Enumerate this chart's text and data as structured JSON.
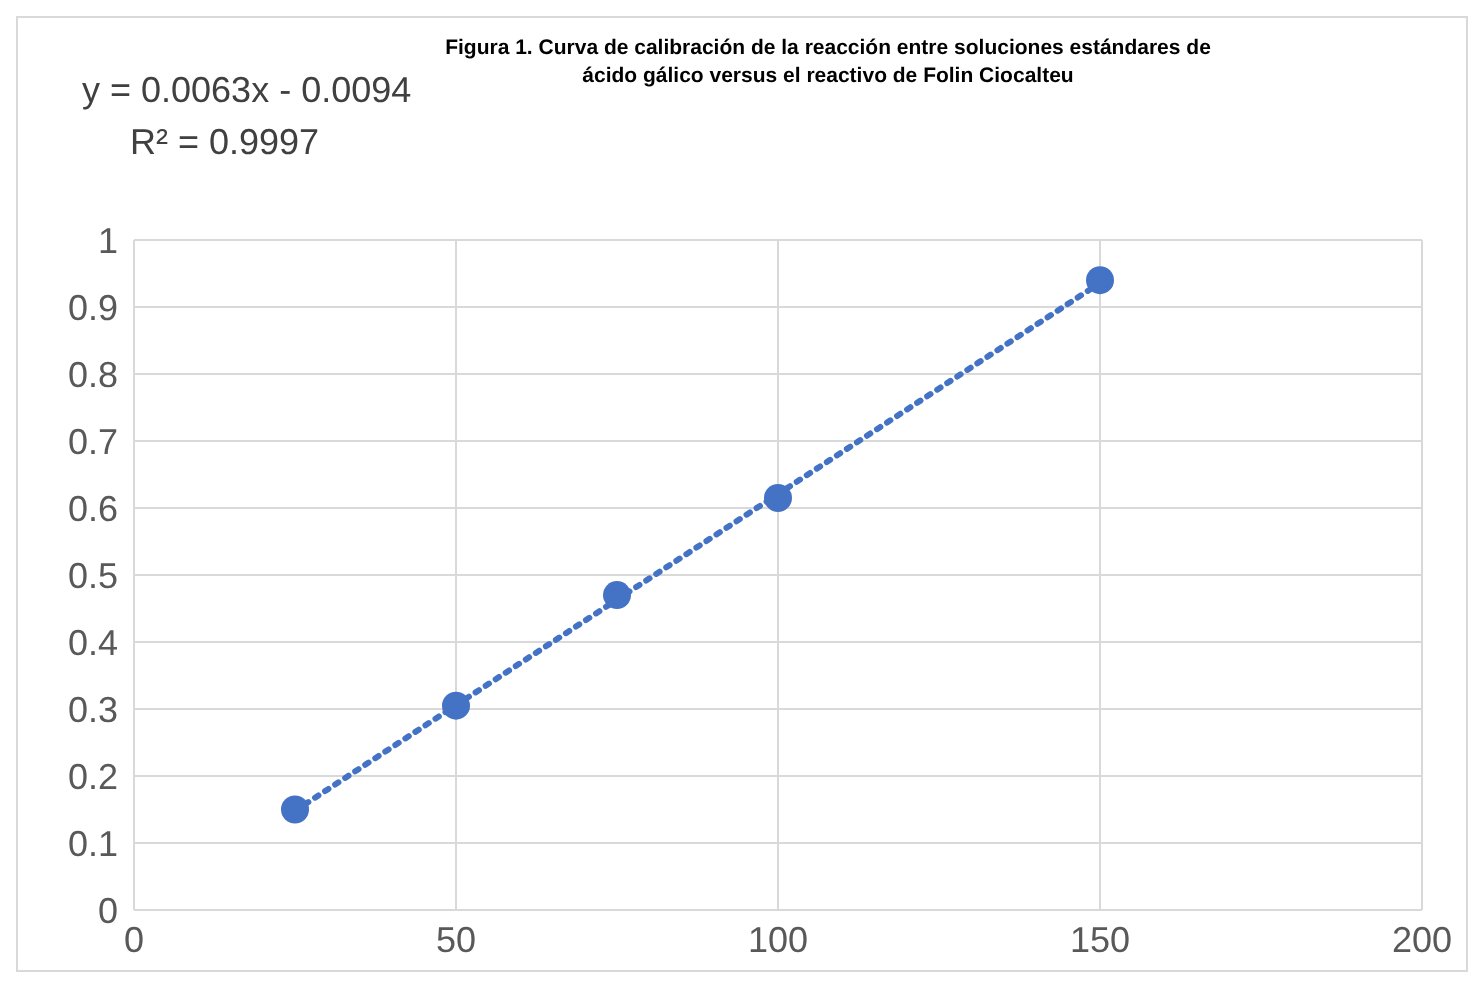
{
  "chart_data": {
    "type": "scatter",
    "title": "Figura 1. Curva de calibración de la reacción entre soluciones estándares de ácido gálico versus el reactivo de Folin Ciocalteu",
    "annotations": [
      "y = 0.0063x - 0.0094",
      "R² = 0.9997"
    ],
    "series": [
      {
        "type": "scatter",
        "color": "#4472c4",
        "marker": "circle",
        "x": [
          25,
          50,
          75,
          100,
          150
        ],
        "values": [
          0.15,
          0.305,
          0.47,
          0.615,
          0.94
        ]
      },
      {
        "type": "line",
        "color": "#4472c4",
        "marker": "none",
        "line_style": "dotted",
        "x": [
          25,
          150
        ],
        "values": [
          0.148,
          0.936
        ]
      }
    ],
    "xlim": [
      0,
      200
    ],
    "xticks": [
      0,
      50,
      100,
      150,
      200
    ],
    "ylim": [
      0,
      1
    ],
    "yticks": [
      0,
      0.1,
      0.2,
      0.3,
      0.4,
      0.5,
      0.6,
      0.7,
      0.8,
      0.9,
      1
    ],
    "grid": true
  }
}
